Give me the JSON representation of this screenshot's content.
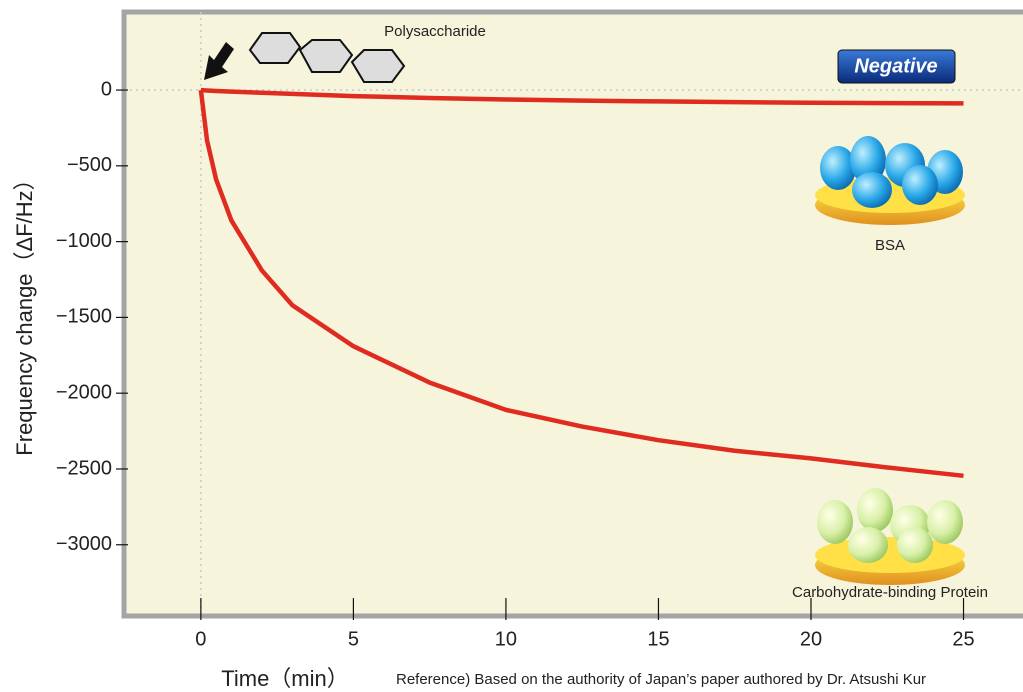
{
  "chart_data": {
    "type": "line",
    "x_label": "Time（min）",
    "y_label": "Frequency change（ΔF/Hz）",
    "annotations": {
      "polysaccharide": "Polysaccharide",
      "badge": "Negative",
      "reference": "Reference) Based on the authority of Japan’s paper authored by Dr. Atsushi Kur"
    },
    "x": [
      0,
      0.2,
      0.5,
      1,
      2,
      3,
      5,
      7.5,
      10,
      12.5,
      15,
      17.5,
      20,
      22.5,
      25
    ],
    "series": [
      {
        "name": "BSA",
        "color": "#e02b20",
        "values": [
          0,
          -3,
          -6,
          -10,
          -18,
          -25,
          -40,
          -52,
          -62,
          -70,
          -75,
          -80,
          -84,
          -86,
          -88
        ]
      },
      {
        "name": "Carbohydrate-binding Protein",
        "color": "#e02b20",
        "values": [
          0,
          -330,
          -590,
          -860,
          -1190,
          -1420,
          -1690,
          -1930,
          -2110,
          -2220,
          -2310,
          -2380,
          -2430,
          -2490,
          -2545
        ]
      }
    ],
    "xlim": [
      -2.52,
      26.95
    ],
    "ylim": [
      -3470,
      515
    ],
    "xticks": [
      0,
      5,
      10,
      15,
      20,
      25
    ],
    "yticks": [
      0,
      {
        "value": -500,
        "label": "−500"
      },
      {
        "value": -1000,
        "label": "−1000"
      },
      {
        "value": -1500,
        "label": "−1500"
      },
      {
        "value": -2000,
        "label": "−2000"
      },
      {
        "value": -2500,
        "label": "−2500"
      },
      {
        "value": -3000,
        "label": "−3000"
      }
    ]
  }
}
